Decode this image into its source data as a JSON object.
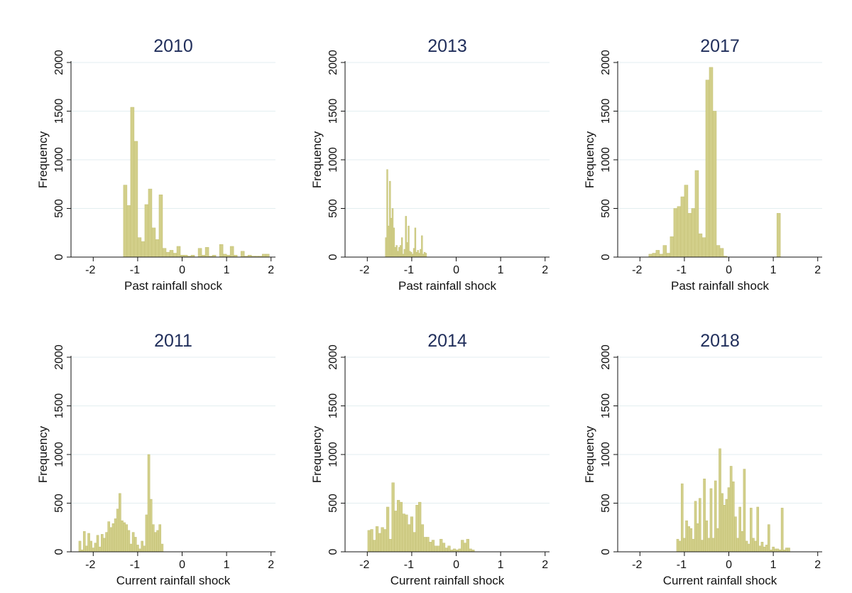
{
  "figure": {
    "background": "#ffffff",
    "bar_color": "#d2cf8a",
    "title_color": "#1f2d5a",
    "grid": true
  },
  "chart_data": [
    {
      "type": "bar",
      "title": "2010",
      "xlabel": "Past rainfall shock",
      "ylabel": "Frequency",
      "xlim": [
        -2.5,
        2.1
      ],
      "ylim": [
        0,
        2000
      ],
      "xticks": [
        -2,
        -1,
        0,
        1,
        2
      ],
      "yticks": [
        0,
        500,
        1000,
        1500,
        2000
      ],
      "bin_width": 0.08,
      "x": [
        -1.28,
        -1.2,
        -1.12,
        -1.04,
        -0.96,
        -0.88,
        -0.8,
        -0.72,
        -0.64,
        -0.56,
        -0.48,
        -0.4,
        -0.32,
        -0.24,
        -0.16,
        -0.08,
        0.0,
        0.08,
        0.16,
        0.24,
        0.32,
        0.4,
        0.48,
        0.56,
        0.64,
        0.72,
        0.8,
        0.88,
        0.96,
        1.04,
        1.12,
        1.2,
        1.28,
        1.36,
        1.44,
        1.52,
        1.6,
        1.68,
        1.76,
        1.84,
        1.92,
        2.0
      ],
      "values": [
        740,
        530,
        1540,
        1190,
        200,
        160,
        540,
        700,
        300,
        180,
        640,
        90,
        50,
        70,
        40,
        110,
        20,
        20,
        10,
        20,
        0,
        90,
        20,
        100,
        10,
        20,
        0,
        130,
        30,
        20,
        110,
        20,
        0,
        60,
        10,
        20,
        10,
        10,
        10,
        30,
        30,
        0
      ]
    },
    {
      "type": "bar",
      "title": "2013",
      "xlabel": "Past rainfall shock",
      "ylabel": "Frequency",
      "xlim": [
        -2.5,
        2.1
      ],
      "ylim": [
        0,
        2000
      ],
      "xticks": [
        -2,
        -1,
        0,
        1,
        2
      ],
      "yticks": [
        0,
        500,
        1000,
        1500,
        2000
      ],
      "bin_width": 0.03,
      "x": [
        -1.58,
        -1.55,
        -1.52,
        -1.49,
        -1.46,
        -1.43,
        -1.4,
        -1.37,
        -1.34,
        -1.31,
        -1.28,
        -1.25,
        -1.22,
        -1.19,
        -1.16,
        -1.13,
        -1.1,
        -1.07,
        -1.04,
        -1.01,
        -0.98,
        -0.95,
        -0.92,
        -0.89,
        -0.86,
        -0.83,
        -0.8,
        -0.77,
        -0.74,
        -0.71,
        -0.68
      ],
      "values": [
        200,
        900,
        320,
        780,
        400,
        500,
        300,
        100,
        120,
        60,
        100,
        120,
        200,
        30,
        80,
        420,
        150,
        320,
        60,
        50,
        30,
        90,
        300,
        50,
        70,
        40,
        80,
        220,
        30,
        50,
        40
      ]
    },
    {
      "type": "bar",
      "title": "2017",
      "xlabel": "Past rainfall shock",
      "ylabel": "Frequency",
      "xlim": [
        -2.5,
        2.1
      ],
      "ylim": [
        0,
        2000
      ],
      "xticks": [
        -2,
        -1,
        0,
        1,
        2
      ],
      "yticks": [
        0,
        500,
        1000,
        1500,
        2000
      ],
      "bin_width": 0.08,
      "x": [
        -1.76,
        -1.68,
        -1.6,
        -1.52,
        -1.44,
        -1.36,
        -1.28,
        -1.2,
        -1.12,
        -1.04,
        -0.96,
        -0.88,
        -0.8,
        -0.72,
        -0.64,
        -0.56,
        -0.48,
        -0.4,
        -0.32,
        -0.24,
        -0.16,
        -0.08,
        1.12
      ],
      "values": [
        30,
        40,
        70,
        30,
        120,
        40,
        210,
        500,
        520,
        620,
        740,
        450,
        500,
        890,
        240,
        200,
        1820,
        1950,
        1500,
        120,
        90,
        10,
        450
      ]
    },
    {
      "type": "bar",
      "title": "2011",
      "xlabel": "Current rainfall shock",
      "ylabel": "Frequency",
      "xlim": [
        -2.5,
        2.1
      ],
      "ylim": [
        0,
        2000
      ],
      "xticks": [
        -2,
        -1,
        0,
        1,
        2
      ],
      "yticks": [
        0,
        500,
        1000,
        1500,
        2000
      ],
      "bin_width": 0.05,
      "x": [
        -2.3,
        -2.25,
        -2.2,
        -2.15,
        -2.1,
        -2.05,
        -2.0,
        -1.95,
        -1.9,
        -1.85,
        -1.8,
        -1.75,
        -1.7,
        -1.65,
        -1.6,
        -1.55,
        -1.5,
        -1.45,
        -1.4,
        -1.35,
        -1.3,
        -1.25,
        -1.2,
        -1.15,
        -1.1,
        -1.05,
        -1.0,
        -0.95,
        -0.9,
        -0.85,
        -0.8,
        -0.75,
        -0.7,
        -0.65,
        -0.6,
        -0.55,
        -0.5,
        -0.45
      ],
      "values": [
        110,
        20,
        210,
        60,
        190,
        110,
        40,
        90,
        170,
        50,
        180,
        140,
        200,
        310,
        250,
        290,
        340,
        440,
        600,
        320,
        300,
        280,
        220,
        80,
        200,
        150,
        70,
        30,
        110,
        60,
        380,
        1000,
        540,
        280,
        200,
        220,
        280,
        80
      ]
    },
    {
      "type": "bar",
      "title": "2014",
      "xlabel": "Current rainfall shock",
      "ylabel": "Frequency",
      "xlim": [
        -2.5,
        2.1
      ],
      "ylim": [
        0,
        2000
      ],
      "xticks": [
        -2,
        -1,
        0,
        1,
        2
      ],
      "yticks": [
        0,
        500,
        1000,
        1500,
        2000
      ],
      "bin_width": 0.06,
      "x": [
        -1.96,
        -1.9,
        -1.84,
        -1.78,
        -1.72,
        -1.66,
        -1.6,
        -1.54,
        -1.48,
        -1.42,
        -1.36,
        -1.3,
        -1.24,
        -1.18,
        -1.12,
        -1.06,
        -1.0,
        -0.94,
        -0.88,
        -0.82,
        -0.76,
        -0.7,
        -0.64,
        -0.58,
        -0.52,
        -0.46,
        -0.4,
        -0.34,
        -0.28,
        -0.22,
        -0.16,
        -0.1,
        -0.04,
        0.02,
        0.08,
        0.14,
        0.2,
        0.26,
        0.32,
        0.38
      ],
      "values": [
        220,
        230,
        120,
        260,
        190,
        250,
        230,
        460,
        130,
        710,
        420,
        530,
        510,
        390,
        380,
        280,
        360,
        200,
        480,
        510,
        280,
        150,
        150,
        100,
        120,
        60,
        60,
        130,
        90,
        40,
        60,
        20,
        30,
        20,
        30,
        120,
        90,
        130,
        30,
        20
      ]
    },
    {
      "type": "bar",
      "title": "2018",
      "xlabel": "Current rainfall shock",
      "ylabel": "Frequency",
      "xlim": [
        -2.5,
        2.1
      ],
      "ylim": [
        0,
        2000
      ],
      "xticks": [
        -2,
        -1,
        0,
        1,
        2
      ],
      "yticks": [
        0,
        500,
        1000,
        1500,
        2000
      ],
      "bin_width": 0.05,
      "x": [
        -1.15,
        -1.1,
        -1.05,
        -1.0,
        -0.95,
        -0.9,
        -0.85,
        -0.8,
        -0.75,
        -0.7,
        -0.65,
        -0.6,
        -0.55,
        -0.5,
        -0.45,
        -0.4,
        -0.35,
        -0.3,
        -0.25,
        -0.2,
        -0.15,
        -0.1,
        -0.05,
        0.0,
        0.05,
        0.1,
        0.15,
        0.2,
        0.25,
        0.3,
        0.35,
        0.4,
        0.45,
        0.5,
        0.55,
        0.6,
        0.65,
        0.7,
        0.75,
        0.8,
        0.85,
        0.9,
        0.95,
        1.0,
        1.05,
        1.1,
        1.15,
        1.2,
        1.25,
        1.3,
        1.35
      ],
      "values": [
        130,
        110,
        700,
        140,
        320,
        260,
        240,
        130,
        520,
        290,
        550,
        120,
        750,
        320,
        140,
        650,
        140,
        730,
        240,
        1060,
        600,
        480,
        540,
        660,
        880,
        720,
        360,
        140,
        460,
        210,
        850,
        110,
        80,
        450,
        140,
        110,
        460,
        60,
        100,
        50,
        70,
        280,
        20,
        50,
        30,
        30,
        20,
        450,
        20,
        40,
        40
      ]
    }
  ]
}
